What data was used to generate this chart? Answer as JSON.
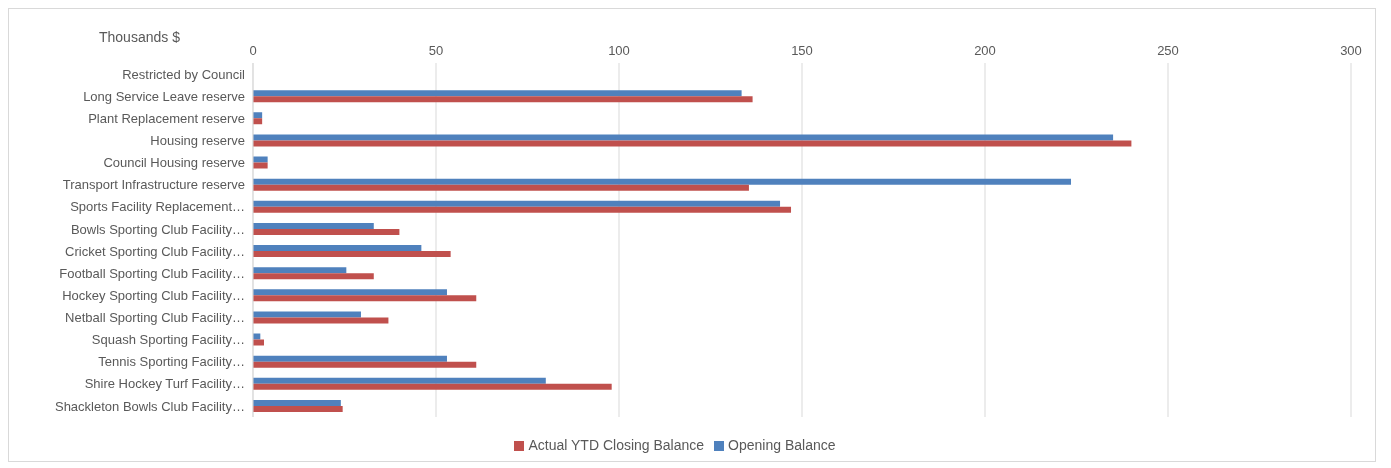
{
  "chart_data": {
    "type": "bar",
    "orientation": "horizontal",
    "xlabel": "Thousands $",
    "categories": [
      "Restricted by Council",
      "Long Service Leave reserve",
      "Plant Replacement reserve",
      "Housing reserve",
      "Council Housing reserve",
      "Transport Infrastructure reserve",
      "Sports Facility Replacement…",
      "Bowls Sporting Club Facility…",
      "Cricket Sporting Club Facility…",
      "Football Sporting Club Facility…",
      "Hockey Sporting Club Facility…",
      "Netball Sporting Club Facility…",
      "Squash Sporting Facility…",
      "Tennis Sporting Facility…",
      "Shire Hockey Turf Facility…",
      "Shackleton Bowls Club Facility…"
    ],
    "series": [
      {
        "name": "Opening  Balance",
        "color": "#4f81bd",
        "values": [
          null,
          133.5,
          2.5,
          235,
          4,
          223.5,
          144,
          33,
          46,
          25.5,
          53,
          29.5,
          2,
          53,
          80,
          24
        ]
      },
      {
        "name": "Actual YTD Closing Balance",
        "color": "#c0504d",
        "values": [
          null,
          136.5,
          2.5,
          240,
          4,
          135.5,
          147,
          40,
          54,
          33,
          61,
          37,
          3,
          61,
          98,
          24.5
        ]
      }
    ],
    "xlim": [
      0,
      300
    ],
    "xticks": [
      0,
      50,
      100,
      150,
      200,
      250,
      300
    ],
    "grid": "x",
    "legend": "bottom"
  }
}
